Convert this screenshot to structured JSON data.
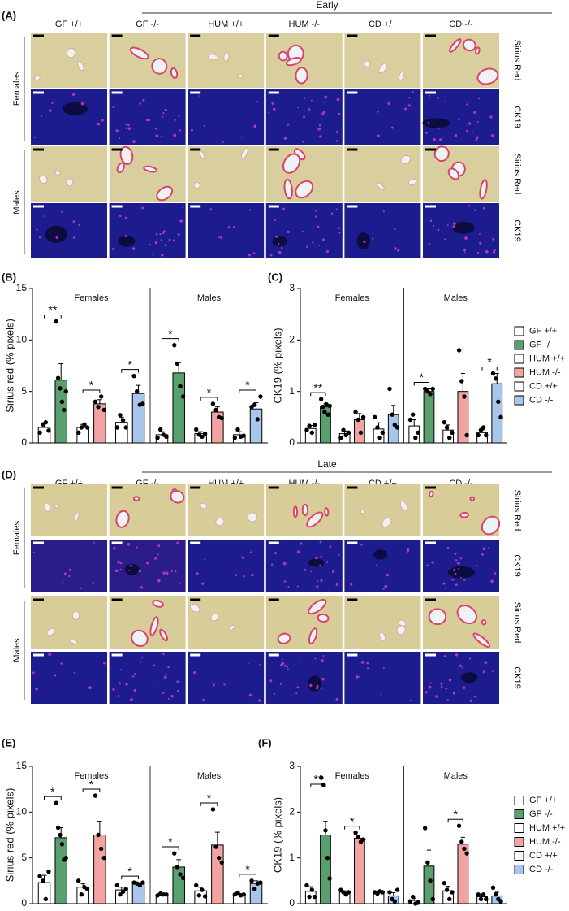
{
  "figures": [
    {
      "label": "(A)",
      "stage": "Early",
      "columns": [
        "GF +/+",
        "GF -/-",
        "HUM +/+",
        "HUM -/-",
        "CD +/+",
        "CD -/-"
      ],
      "rows": [
        "Sirius Red",
        "CK19",
        "Sirius Red",
        "CK19"
      ],
      "groups": [
        "Females",
        "Males"
      ]
    },
    {
      "label": "(D)",
      "stage": "Late",
      "columns": [
        "GF +/+",
        "GF -/-",
        "HUM +/+",
        "HUM -/-",
        "CD +/+",
        "CD -/-"
      ],
      "rows": [
        "Sirius Red",
        "CK19",
        "Sirius Red",
        "CK19"
      ],
      "groups": [
        "Females",
        "Males"
      ]
    }
  ],
  "chart_data": [
    {
      "type": "bar",
      "panel": "(B)",
      "ylabel": "Sirius red (% pixels)",
      "categories": [
        "Females",
        "Males"
      ],
      "ylim": [
        0,
        15
      ],
      "yticks": [
        0,
        5,
        10,
        15
      ],
      "series": [
        {
          "color": "#ffffff",
          "values": [
            1.5,
            0.8
          ],
          "errors": [
            0.4,
            0.3
          ],
          "points": [
            [
              1.0,
              1.8,
              2.0,
              1.2
            ],
            [
              0.5,
              1.3,
              0.8,
              0.6
            ]
          ]
        },
        {
          "color": "#5a9f6e",
          "values": [
            6.1,
            6.8
          ],
          "errors": [
            1.6,
            1.0
          ],
          "points": [
            [
              11.8,
              6.3,
              5.3,
              4.0,
              3.2,
              5.0
            ],
            [
              9.5,
              7.7,
              5.5,
              4.5
            ]
          ]
        },
        {
          "color": "#ffffff",
          "values": [
            1.5,
            0.9
          ],
          "errors": [
            0.3,
            0.2
          ],
          "points": [
            [
              1.0,
              1.5,
              1.8,
              1.5
            ],
            [
              1.3,
              0.8,
              0.6,
              0.9
            ]
          ]
        },
        {
          "color": "#f4a3a3",
          "values": [
            3.8,
            3.0
          ],
          "errors": [
            0.4,
            0.5
          ],
          "points": [
            [
              4.0,
              3.5,
              4.5,
              3.2
            ],
            [
              3.8,
              3.2,
              2.5,
              2.4
            ]
          ]
        },
        {
          "color": "#ffffff",
          "values": [
            2.0,
            0.8
          ],
          "errors": [
            0.5,
            0.3
          ],
          "points": [
            [
              1.5,
              2.7,
              2.2,
              1.5
            ],
            [
              0.5,
              1.3,
              0.6,
              0.7
            ]
          ]
        },
        {
          "color": "#a8c5ec",
          "values": [
            4.8,
            3.3
          ],
          "errors": [
            0.8,
            0.6
          ],
          "points": [
            [
              6.5,
              5.0,
              3.7,
              3.8
            ],
            [
              3.5,
              3.7,
              2.3,
              4.5
            ]
          ]
        }
      ],
      "significance": [
        {
          "label": "**",
          "category": 0,
          "series": [
            0,
            1
          ]
        },
        {
          "label": "*",
          "category": 0,
          "series": [
            2,
            3
          ]
        },
        {
          "label": "*",
          "category": 0,
          "series": [
            4,
            5
          ]
        },
        {
          "label": "*",
          "category": 1,
          "series": [
            0,
            1
          ]
        },
        {
          "label": "*",
          "category": 1,
          "series": [
            2,
            3
          ]
        },
        {
          "label": "*",
          "category": 1,
          "series": [
            4,
            5
          ]
        }
      ]
    },
    {
      "type": "bar",
      "panel": "(C)",
      "ylabel": "CK19 (% pixels)",
      "categories": [
        "Females",
        "Males"
      ],
      "ylim": [
        0,
        3
      ],
      "yticks": [
        0,
        1,
        2,
        3
      ],
      "legend": "right",
      "series": [
        {
          "name": "GF +/+",
          "color": "#ffffff",
          "values": [
            0.28,
            0.33
          ],
          "errors": [
            0.06,
            0.12
          ],
          "points": [
            [
              0.25,
              0.33,
              0.2,
              0.35
            ],
            [
              0.45,
              0.55,
              0.1,
              0.2
            ]
          ]
        },
        {
          "name": "GF -/-",
          "color": "#5a9f6e",
          "values": [
            0.7,
            1.0
          ],
          "errors": [
            0.06,
            0.05
          ],
          "points": [
            [
              0.85,
              0.7,
              0.6,
              0.75,
              0.55,
              0.72
            ],
            [
              1.05,
              1.0,
              0.95,
              1.05
            ]
          ]
        },
        {
          "name": "HUM +/+",
          "color": "#ffffff",
          "values": [
            0.18,
            0.25
          ],
          "errors": [
            0.05,
            0.1
          ],
          "points": [
            [
              0.1,
              0.25,
              0.15,
              0.2
            ],
            [
              0.4,
              0.3,
              0.1,
              0.2
            ]
          ]
        },
        {
          "name": "HUM -/-",
          "color": "#f4a3a3",
          "values": [
            0.45,
            1.0
          ],
          "errors": [
            0.12,
            0.35
          ],
          "points": [
            [
              0.6,
              0.45,
              0.2,
              0.5
            ],
            [
              1.8,
              1.2,
              0.9,
              0.15
            ]
          ]
        },
        {
          "name": "CD +/+",
          "color": "#ffffff",
          "values": [
            0.27,
            0.2
          ],
          "errors": [
            0.12,
            0.05
          ],
          "points": [
            [
              0.5,
              0.3,
              0.1,
              0.2
            ],
            [
              0.15,
              0.25,
              0.3,
              0.15
            ]
          ]
        },
        {
          "name": "CD -/-",
          "color": "#a8c5ec",
          "values": [
            0.55,
            1.15
          ],
          "errors": [
            0.18,
            0.2
          ],
          "points": [
            [
              1.05,
              0.55,
              0.35,
              0.3
            ],
            [
              1.35,
              1.25,
              0.8,
              0.5
            ]
          ]
        }
      ],
      "significance": [
        {
          "label": "**",
          "category": 0,
          "series": [
            0,
            1
          ]
        },
        {
          "label": "*",
          "category": 1,
          "series": [
            0,
            1
          ]
        },
        {
          "label": "*",
          "category": 1,
          "series": [
            4,
            5
          ]
        }
      ]
    },
    {
      "type": "bar",
      "panel": "(E)",
      "ylabel": "Sirius red (% pixels)",
      "categories": [
        "Females",
        "Males"
      ],
      "ylim": [
        0,
        15
      ],
      "yticks": [
        0,
        5,
        10,
        15
      ],
      "series": [
        {
          "color": "#ffffff",
          "values": [
            2.3,
            1.0
          ],
          "errors": [
            0.8,
            0.1
          ],
          "points": [
            [
              3.0,
              2.5,
              0.5,
              3.5
            ],
            [
              0.9,
              1.1,
              1.0,
              1.0
            ]
          ]
        },
        {
          "color": "#5a9f6e",
          "values": [
            7.2,
            4.0
          ],
          "errors": [
            1.1,
            0.8
          ],
          "points": [
            [
              11.0,
              8.3,
              7.5,
              6.5,
              4.8,
              5.0
            ],
            [
              5.5,
              4.0,
              3.2,
              2.8
            ]
          ]
        },
        {
          "color": "#ffffff",
          "values": [
            1.8,
            1.4
          ],
          "errors": [
            0.4,
            0.4
          ],
          "points": [
            [
              2.5,
              1.0,
              1.8,
              1.6
            ],
            [
              2.0,
              0.9,
              1.5,
              0.8
            ]
          ]
        },
        {
          "color": "#f4a3a3",
          "values": [
            7.5,
            6.4
          ],
          "errors": [
            1.5,
            1.4
          ],
          "points": [
            [
              11.8,
              7.5,
              6.0,
              5.0
            ],
            [
              10.3,
              6.2,
              5.0,
              4.5
            ]
          ]
        },
        {
          "color": "#ffffff",
          "values": [
            1.5,
            1.0
          ],
          "errors": [
            0.3,
            0.1
          ],
          "points": [
            [
              2.0,
              1.0,
              1.3,
              1.6
            ],
            [
              1.0,
              1.2,
              0.9,
              1.0
            ]
          ]
        },
        {
          "color": "#a8c5ec",
          "values": [
            2.2,
            2.2
          ],
          "errors": [
            0.1,
            0.3
          ],
          "points": [
            [
              2.3,
              2.2,
              2.0,
              2.3
            ],
            [
              2.5,
              1.6,
              2.2,
              2.3
            ]
          ]
        }
      ],
      "significance": [
        {
          "label": "*",
          "category": 0,
          "series": [
            0,
            1
          ]
        },
        {
          "label": "*",
          "category": 0,
          "series": [
            2,
            3
          ]
        },
        {
          "label": "*",
          "category": 0,
          "series": [
            4,
            5
          ]
        },
        {
          "label": "*",
          "category": 1,
          "series": [
            0,
            1
          ]
        },
        {
          "label": "*",
          "category": 1,
          "series": [
            2,
            3
          ]
        },
        {
          "label": "*",
          "category": 1,
          "series": [
            4,
            5
          ]
        }
      ]
    },
    {
      "type": "bar",
      "panel": "(F)",
      "ylabel": "CK19 (% pixels)",
      "categories": [
        "Females",
        "Males"
      ],
      "ylim": [
        0,
        3
      ],
      "yticks": [
        0,
        1,
        2,
        3
      ],
      "legend": "right",
      "series": [
        {
          "name": "GF +/+",
          "color": "#ffffff",
          "values": [
            0.27,
            0.07
          ],
          "errors": [
            0.1,
            0.05
          ],
          "points": [
            [
              0.4,
              0.15,
              0.3,
              0.15
            ],
            [
              0.05,
              0.15,
              0.0,
              0.02
            ]
          ]
        },
        {
          "name": "GF -/-",
          "color": "#5a9f6e",
          "values": [
            1.5,
            0.82
          ],
          "errors": [
            0.3,
            0.35
          ],
          "points": [
            [
              2.75,
              2.6,
              1.6,
              1.0,
              0.55
            ],
            [
              1.65,
              0.9,
              0.5,
              0.1
            ]
          ]
        },
        {
          "name": "HUM +/+",
          "color": "#ffffff",
          "values": [
            0.25,
            0.28
          ],
          "errors": [
            0.03,
            0.1
          ],
          "points": [
            [
              0.3,
              0.25,
              0.2,
              0.25
            ],
            [
              0.45,
              0.3,
              0.1,
              0.25
            ]
          ]
        },
        {
          "name": "HUM -/-",
          "color": "#f4a3a3",
          "values": [
            1.43,
            1.3
          ],
          "errors": [
            0.07,
            0.15
          ],
          "points": [
            [
              1.55,
              1.45,
              1.35,
              1.4
            ],
            [
              1.7,
              1.35,
              1.2,
              1.1
            ]
          ]
        },
        {
          "name": "CD +/+",
          "color": "#ffffff",
          "values": [
            0.25,
            0.15
          ],
          "errors": [
            0.02,
            0.05
          ],
          "points": [
            [
              0.25,
              0.22,
              0.27,
              0.25
            ],
            [
              0.2,
              0.1,
              0.2,
              0.1
            ]
          ]
        },
        {
          "name": "CD -/-",
          "color": "#a8c5ec",
          "values": [
            0.17,
            0.17
          ],
          "errors": [
            0.07,
            0.08
          ],
          "points": [
            [
              0.25,
              0.1,
              0.05,
              0.3
            ],
            [
              0.35,
              0.2,
              0.1,
              0.05
            ]
          ]
        }
      ],
      "significance": [
        {
          "label": "**",
          "category": 0,
          "series": [
            0,
            1
          ]
        },
        {
          "label": "*",
          "category": 0,
          "series": [
            2,
            3
          ]
        },
        {
          "label": "*",
          "category": 1,
          "series": [
            2,
            3
          ]
        }
      ]
    }
  ]
}
